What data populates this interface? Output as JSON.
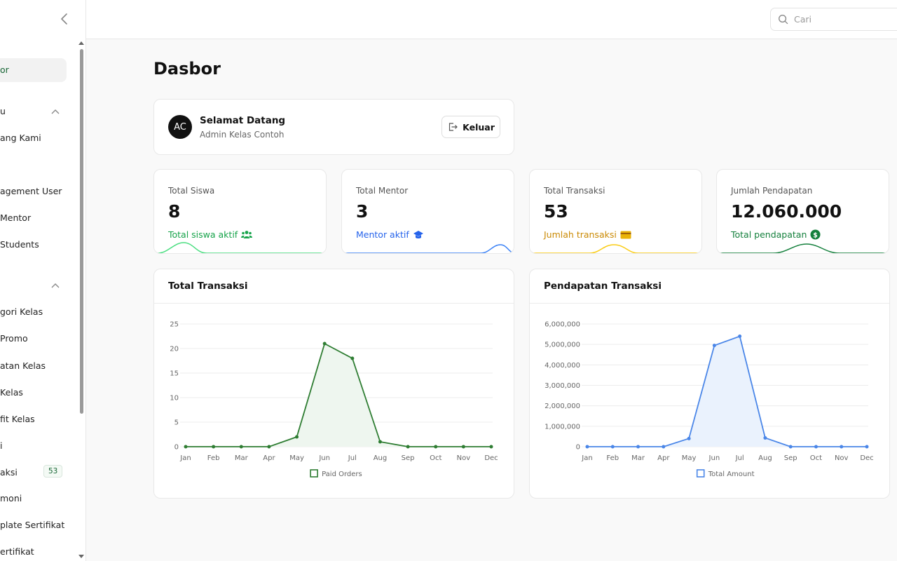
{
  "sidebar": {
    "items": [
      {
        "label": "or",
        "top": 92,
        "active": true
      },
      {
        "label": "u",
        "top": 151
      },
      {
        "label": "ang Kami",
        "top": 189
      },
      {
        "label": "agement User",
        "top": 265
      },
      {
        "label": "Mentor",
        "top": 303
      },
      {
        "label": "Students",
        "top": 341
      },
      {
        "label": "gori Kelas",
        "top": 437
      },
      {
        "label": "Promo",
        "top": 475
      },
      {
        "label": "atan Kelas",
        "top": 514
      },
      {
        "label": "Kelas",
        "top": 552
      },
      {
        "label": "fit Kelas",
        "top": 590
      },
      {
        "label": "i",
        "top": 628
      },
      {
        "label": "aksi",
        "top": 666
      },
      {
        "label": "moni",
        "top": 703
      },
      {
        "label": "plate Sertifikat",
        "top": 741
      },
      {
        "label": "ertifikat",
        "top": 779
      }
    ],
    "transaksi_badge": "53"
  },
  "topbar": {
    "search_placeholder": "Cari"
  },
  "page": {
    "title": "Dasbor"
  },
  "welcome": {
    "avatar_initials": "AC",
    "title": "Selamat Datang",
    "subtitle": "Admin Kelas Contoh",
    "logout_label": "Keluar"
  },
  "stats": [
    {
      "label": "Total Siswa",
      "value": "8",
      "sub": "Total siswa aktif",
      "color": "#16a34a",
      "icon": "users-icon"
    },
    {
      "label": "Total Mentor",
      "value": "3",
      "sub": "Mentor aktif",
      "color": "#2563eb",
      "icon": "graduation-cap-icon"
    },
    {
      "label": "Total Transaksi",
      "value": "53",
      "sub": "Jumlah transaksi",
      "color": "#ca8a04",
      "icon": "credit-card-icon"
    },
    {
      "label": "Jumlah Pendapatan",
      "value": "12.060.000",
      "sub": "Total pendapatan",
      "color": "#15803d",
      "icon": "dollar-circle-icon"
    }
  ],
  "charts": {
    "transaksi": {
      "title": "Total Transaksi"
    },
    "pendapatan": {
      "title": "Pendapatan Transaksi"
    }
  },
  "chart_data": [
    {
      "type": "area",
      "title": "Total Transaksi",
      "categories": [
        "Jan",
        "Feb",
        "Mar",
        "Apr",
        "May",
        "Jun",
        "Jul",
        "Aug",
        "Sep",
        "Oct",
        "Nov",
        "Dec"
      ],
      "series": [
        {
          "name": "Paid Orders",
          "values": [
            0,
            0,
            0,
            0,
            2,
            21,
            18,
            1,
            0,
            0,
            0,
            0
          ]
        }
      ],
      "yticks": [
        "0",
        "5",
        "10",
        "15",
        "20",
        "25"
      ],
      "ylim": [
        0,
        25
      ],
      "color": "#2e7d32",
      "fill": "#eef6ef",
      "legend": "bottom-center",
      "grid": true
    },
    {
      "type": "area",
      "title": "Pendapatan Transaksi",
      "categories": [
        "Jan",
        "Feb",
        "Mar",
        "Apr",
        "May",
        "Jun",
        "Jul",
        "Aug",
        "Sep",
        "Oct",
        "Nov",
        "Dec"
      ],
      "series": [
        {
          "name": "Total Amount",
          "values": [
            0,
            0,
            0,
            0,
            400000,
            4950000,
            5400000,
            430000,
            0,
            0,
            0,
            0
          ]
        }
      ],
      "yticks": [
        "0",
        "1,000,000",
        "2,000,000",
        "3,000,000",
        "4,000,000",
        "5,000,000",
        "6,000,000"
      ],
      "ylim": [
        0,
        6000000
      ],
      "color": "#4a86e8",
      "fill": "#eaf2fd",
      "legend": "bottom-center",
      "grid": true
    }
  ]
}
